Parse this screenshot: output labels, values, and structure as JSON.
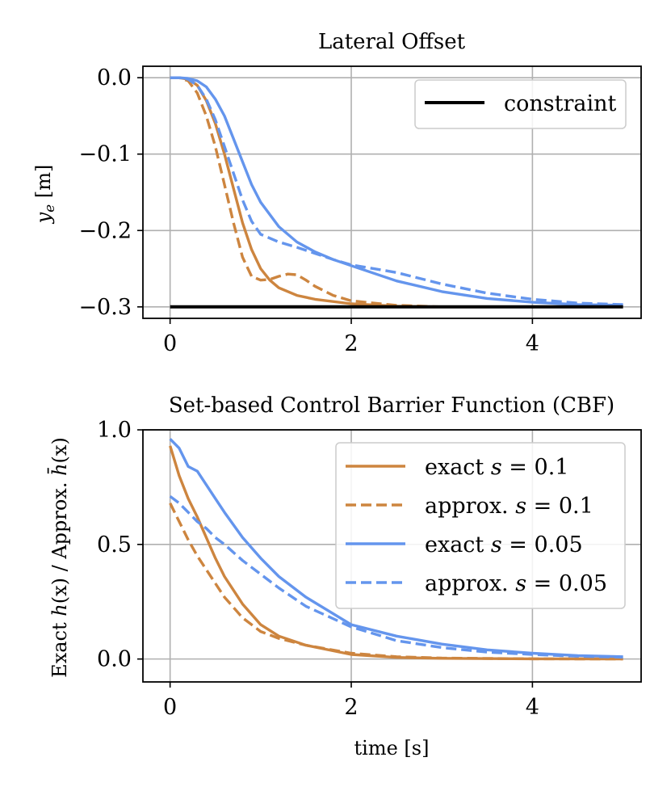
{
  "colors": {
    "exact_01": "#CD853F",
    "approx_01": "#CD853F",
    "exact_005": "#6495ED",
    "approx_005": "#6495ED",
    "constraint": "#000000",
    "grid": "#b0b0b0"
  },
  "chart_data": [
    {
      "type": "line",
      "title": "Lateral Offset",
      "xlabel": "",
      "ylabel": "y_e [m]",
      "ylabel_parts": {
        "var": "y",
        "sub": "e",
        "unit": " [m]"
      },
      "xlim": [
        -0.3,
        5.2
      ],
      "ylim": [
        -0.315,
        0.015
      ],
      "xticks": [
        0,
        2,
        4
      ],
      "xtick_labels": [
        "0",
        "2",
        "4"
      ],
      "yticks": [
        0.0,
        -0.1,
        -0.2,
        -0.3
      ],
      "ytick_labels": [
        "0.0",
        "−0.1",
        "−0.2",
        "−0.3"
      ],
      "grid": true,
      "legend": {
        "placement": "top-right",
        "entries": [
          "constraint"
        ]
      },
      "series": [
        {
          "name": "exact s = 0.1",
          "style": "solid",
          "color": "#CD853F",
          "x": [
            0,
            0.1,
            0.2,
            0.3,
            0.4,
            0.5,
            0.6,
            0.7,
            0.8,
            0.9,
            1.0,
            1.1,
            1.2,
            1.4,
            1.6,
            2.0,
            2.5,
            3.0,
            4.0,
            5.0
          ],
          "y": [
            0,
            0,
            -0.002,
            -0.01,
            -0.03,
            -0.06,
            -0.1,
            -0.145,
            -0.19,
            -0.225,
            -0.25,
            -0.265,
            -0.275,
            -0.285,
            -0.29,
            -0.296,
            -0.299,
            -0.3,
            -0.3,
            -0.3
          ]
        },
        {
          "name": "approx. s = 0.1",
          "style": "dashed",
          "color": "#CD853F",
          "x": [
            0,
            0.1,
            0.2,
            0.3,
            0.4,
            0.5,
            0.6,
            0.7,
            0.8,
            0.9,
            1.0,
            1.1,
            1.2,
            1.3,
            1.4,
            1.5,
            1.6,
            1.8,
            2.0,
            2.5,
            3.0,
            4.0,
            5.0
          ],
          "y": [
            0,
            0,
            -0.004,
            -0.02,
            -0.05,
            -0.09,
            -0.14,
            -0.19,
            -0.235,
            -0.26,
            -0.265,
            -0.264,
            -0.26,
            -0.257,
            -0.258,
            -0.265,
            -0.273,
            -0.285,
            -0.292,
            -0.298,
            -0.3,
            -0.3,
            -0.3
          ]
        },
        {
          "name": "exact s = 0.05",
          "style": "solid",
          "color": "#6495ED",
          "x": [
            0,
            0.1,
            0.2,
            0.3,
            0.4,
            0.5,
            0.6,
            0.7,
            0.8,
            0.9,
            1.0,
            1.2,
            1.4,
            1.6,
            1.8,
            2.0,
            2.5,
            3.0,
            3.5,
            4.0,
            4.5,
            5.0
          ],
          "y": [
            0,
            0,
            -0.001,
            -0.004,
            -0.012,
            -0.028,
            -0.05,
            -0.08,
            -0.11,
            -0.14,
            -0.163,
            -0.195,
            -0.215,
            -0.228,
            -0.238,
            -0.246,
            -0.266,
            -0.28,
            -0.289,
            -0.294,
            -0.297,
            -0.298
          ]
        },
        {
          "name": "approx. s = 0.05",
          "style": "dashed",
          "color": "#6495ED",
          "x": [
            0,
            0.1,
            0.2,
            0.3,
            0.4,
            0.5,
            0.6,
            0.7,
            0.8,
            0.9,
            1.0,
            1.2,
            1.4,
            1.6,
            1.8,
            2.0,
            2.5,
            3.0,
            3.5,
            4.0,
            4.5,
            5.0
          ],
          "y": [
            0,
            0,
            -0.002,
            -0.01,
            -0.028,
            -0.055,
            -0.09,
            -0.125,
            -0.16,
            -0.188,
            -0.205,
            -0.215,
            -0.222,
            -0.23,
            -0.238,
            -0.245,
            -0.255,
            -0.27,
            -0.282,
            -0.29,
            -0.295,
            -0.297
          ]
        },
        {
          "name": "constraint",
          "style": "solid",
          "color": "#000000",
          "x": [
            0,
            5.0
          ],
          "y": [
            -0.3,
            -0.3
          ]
        }
      ]
    },
    {
      "type": "line",
      "title": "Set-based Control Barrier Function (CBF)",
      "xlabel": "time [s]",
      "ylabel": "Exact h(x) / Approx. h̄(x)",
      "ylabel_parts": {
        "a": "Exact ",
        "h": "h",
        "x1": "(x)",
        "mid": " / Approx. ",
        "hbar": "h̄",
        "x2": "(x)"
      },
      "xlim": [
        -0.3,
        5.2
      ],
      "ylim": [
        -0.1,
        1.0
      ],
      "xticks": [
        0,
        2,
        4
      ],
      "xtick_labels": [
        "0",
        "2",
        "4"
      ],
      "yticks": [
        0.0,
        0.5,
        1.0
      ],
      "ytick_labels": [
        "0.0",
        "0.5",
        "1.0"
      ],
      "grid": true,
      "legend": {
        "placement": "top-right",
        "entries": [
          {
            "prefix": "exact ",
            "s_value": "0.1"
          },
          {
            "prefix": "approx. ",
            "s_value": "0.1"
          },
          {
            "prefix": "exact ",
            "s_value": "0.05"
          },
          {
            "prefix": "approx. ",
            "s_value": "0.05"
          }
        ],
        "s_symbol": "s",
        "equals": " = "
      },
      "series": [
        {
          "name": "exact s = 0.1",
          "style": "solid",
          "color": "#CD853F",
          "x": [
            0,
            0.1,
            0.2,
            0.3,
            0.4,
            0.5,
            0.6,
            0.8,
            1.0,
            1.2,
            1.5,
            2.0,
            2.5,
            3.0,
            4.0,
            5.0
          ],
          "y": [
            0.93,
            0.8,
            0.7,
            0.62,
            0.53,
            0.44,
            0.36,
            0.24,
            0.15,
            0.1,
            0.06,
            0.02,
            0.007,
            0.003,
            0.001,
            0.0
          ]
        },
        {
          "name": "approx. s = 0.1",
          "style": "dashed",
          "color": "#CD853F",
          "x": [
            0,
            0.1,
            0.2,
            0.3,
            0.4,
            0.5,
            0.6,
            0.8,
            1.0,
            1.2,
            1.5,
            2.0,
            2.5,
            3.0,
            4.0,
            5.0
          ],
          "y": [
            0.68,
            0.6,
            0.52,
            0.45,
            0.39,
            0.33,
            0.27,
            0.18,
            0.12,
            0.09,
            0.06,
            0.025,
            0.01,
            0.004,
            0.001,
            0.0
          ]
        },
        {
          "name": "exact s = 0.05",
          "style": "solid",
          "color": "#6495ED",
          "x": [
            0,
            0.1,
            0.2,
            0.3,
            0.4,
            0.5,
            0.6,
            0.8,
            1.0,
            1.2,
            1.5,
            2.0,
            2.5,
            3.0,
            3.5,
            4.0,
            4.5,
            5.0
          ],
          "y": [
            0.96,
            0.92,
            0.84,
            0.82,
            0.76,
            0.7,
            0.64,
            0.53,
            0.44,
            0.36,
            0.27,
            0.15,
            0.1,
            0.065,
            0.04,
            0.025,
            0.015,
            0.01
          ]
        },
        {
          "name": "approx. s = 0.05",
          "style": "dashed",
          "color": "#6495ED",
          "x": [
            0,
            0.1,
            0.2,
            0.3,
            0.4,
            0.5,
            0.6,
            0.8,
            1.0,
            1.2,
            1.5,
            2.0,
            2.5,
            3.0,
            3.5,
            4.0,
            4.5,
            5.0
          ],
          "y": [
            0.71,
            0.68,
            0.64,
            0.6,
            0.57,
            0.53,
            0.5,
            0.43,
            0.37,
            0.31,
            0.23,
            0.14,
            0.08,
            0.05,
            0.03,
            0.02,
            0.012,
            0.008
          ]
        }
      ]
    }
  ]
}
